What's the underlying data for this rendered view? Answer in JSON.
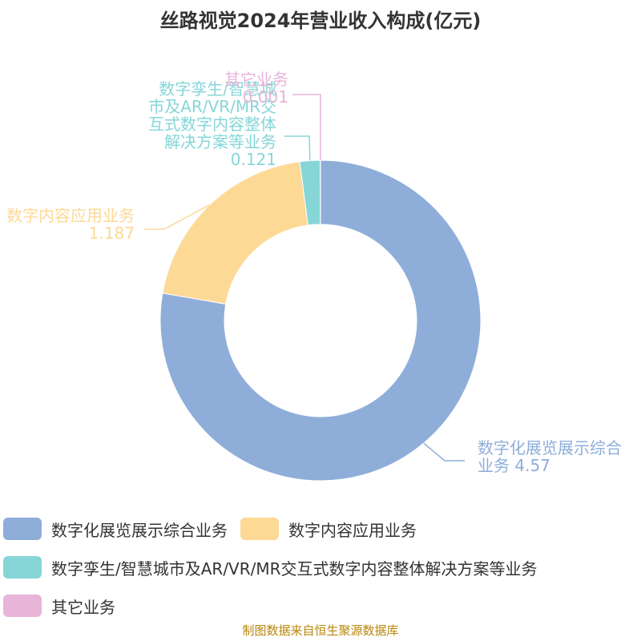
{
  "chart_data": {
    "type": "donut",
    "title": "丝路视觉2024年营业收入构成(亿元)",
    "categories": [
      "数字化展览展示综合业务",
      "数字内容应用业务",
      "数字孪生/智慧城市及AR/VR/MR交互式数字内容整体解决方案等业务",
      "其它业务"
    ],
    "values": [
      4.57,
      1.187,
      0.121,
      0.001
    ],
    "colors": [
      "#8eaed9",
      "#fdd996",
      "#86d6d8",
      "#e8b4d8"
    ],
    "source": "制图数据来自恒生聚源数据库"
  }
}
